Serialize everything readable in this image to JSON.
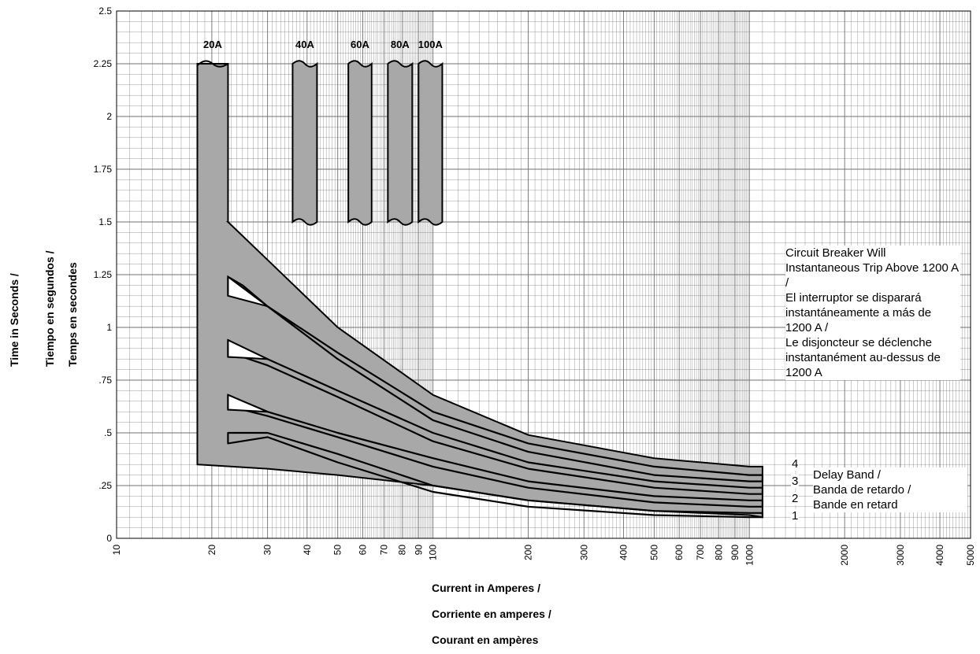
{
  "chart_data": {
    "type": "area",
    "x_scale": "log",
    "xlim": [
      10,
      5000
    ],
    "ylim": [
      0,
      2.5
    ],
    "grid": true,
    "y_ticks": [
      {
        "value": 0,
        "label": "0"
      },
      {
        "value": 0.25,
        "label": ".25"
      },
      {
        "value": 0.5,
        "label": ".5"
      },
      {
        "value": 0.75,
        "label": ".75"
      },
      {
        "value": 1,
        "label": "1"
      },
      {
        "value": 1.25,
        "label": "1.25"
      },
      {
        "value": 1.5,
        "label": "1.5"
      },
      {
        "value": 1.75,
        "label": "1.75"
      },
      {
        "value": 2,
        "label": "2"
      },
      {
        "value": 2.25,
        "label": "2.25"
      },
      {
        "value": 2.5,
        "label": "2.5"
      }
    ],
    "x_ticks": [
      10,
      20,
      30,
      40,
      50,
      60,
      70,
      80,
      90,
      100,
      200,
      300,
      400,
      500,
      600,
      700,
      800,
      900,
      1000,
      2000,
      3000,
      4000,
      5000
    ],
    "ylabel": [
      "Time in Seconds /",
      "Tiempo en segundos /",
      "Temps en secondes"
    ],
    "xlabel": [
      "Current in Amperes /",
      "Corriente en amperes /",
      "Courant en ampères"
    ],
    "instantaneous_bands": [
      {
        "label": "20A",
        "x_range": [
          18,
          22.5
        ],
        "y_range": [
          1.5,
          2.25
        ]
      },
      {
        "label": "40A",
        "x_range": [
          36,
          43
        ],
        "y_range": [
          1.5,
          2.25
        ]
      },
      {
        "label": "60A",
        "x_range": [
          54,
          64
        ],
        "y_range": [
          1.5,
          2.25
        ]
      },
      {
        "label": "80A",
        "x_range": [
          72,
          86
        ],
        "y_range": [
          1.5,
          2.25
        ]
      },
      {
        "label": "100A",
        "x_range": [
          90,
          107
        ],
        "y_range": [
          1.5,
          2.25
        ]
      }
    ],
    "delay_envelope": {
      "x_start": 18,
      "x_step": 22.5,
      "top": [
        [
          22.5,
          1.5
        ],
        [
          30,
          1.32
        ],
        [
          50,
          1.0
        ],
        [
          100,
          0.68
        ],
        [
          200,
          0.49
        ],
        [
          500,
          0.38
        ],
        [
          1000,
          0.34
        ],
        [
          1100,
          0.34
        ]
      ],
      "bottom": [
        [
          1100,
          0.1
        ],
        [
          1000,
          0.11
        ],
        [
          500,
          0.13
        ],
        [
          200,
          0.18
        ],
        [
          100,
          0.25
        ],
        [
          50,
          0.3
        ],
        [
          30,
          0.33
        ],
        [
          18,
          0.35
        ]
      ]
    },
    "delay_bands": [
      {
        "name": "4",
        "upper": [
          [
            22.5,
            1.24
          ],
          [
            25,
            1.2
          ],
          [
            30,
            1.1
          ],
          [
            50,
            0.88
          ],
          [
            100,
            0.6
          ],
          [
            200,
            0.45
          ],
          [
            500,
            0.34
          ],
          [
            1000,
            0.3
          ],
          [
            1100,
            0.3
          ]
        ],
        "lower": [
          [
            22.5,
            1.15
          ],
          [
            25,
            1.15
          ],
          [
            30,
            1.1
          ],
          [
            50,
            0.85
          ],
          [
            100,
            0.56
          ],
          [
            200,
            0.41
          ],
          [
            500,
            0.3
          ],
          [
            1000,
            0.27
          ],
          [
            1100,
            0.27
          ]
        ]
      },
      {
        "name": "3",
        "upper": [
          [
            22.5,
            0.94
          ],
          [
            25,
            0.9
          ],
          [
            30,
            0.85
          ],
          [
            50,
            0.7
          ],
          [
            100,
            0.5
          ],
          [
            200,
            0.36
          ],
          [
            500,
            0.27
          ],
          [
            1000,
            0.24
          ],
          [
            1100,
            0.24
          ]
        ],
        "lower": [
          [
            22.5,
            0.86
          ],
          [
            25,
            0.86
          ],
          [
            30,
            0.82
          ],
          [
            50,
            0.67
          ],
          [
            100,
            0.46
          ],
          [
            200,
            0.33
          ],
          [
            500,
            0.24
          ],
          [
            1000,
            0.21
          ],
          [
            1100,
            0.21
          ]
        ]
      },
      {
        "name": "2",
        "upper": [
          [
            22.5,
            0.68
          ],
          [
            25,
            0.65
          ],
          [
            30,
            0.6
          ],
          [
            50,
            0.5
          ],
          [
            100,
            0.38
          ],
          [
            200,
            0.27
          ],
          [
            500,
            0.2
          ],
          [
            1000,
            0.18
          ],
          [
            1100,
            0.18
          ]
        ],
        "lower": [
          [
            22.5,
            0.61
          ],
          [
            25,
            0.61
          ],
          [
            30,
            0.58
          ],
          [
            50,
            0.48
          ],
          [
            100,
            0.34
          ],
          [
            200,
            0.24
          ],
          [
            500,
            0.17
          ],
          [
            1000,
            0.15
          ],
          [
            1100,
            0.15
          ]
        ]
      },
      {
        "name": "1",
        "upper": [
          [
            22.5,
            0.5
          ],
          [
            30,
            0.5
          ],
          [
            50,
            0.4
          ],
          [
            100,
            0.25
          ],
          [
            200,
            0.18
          ],
          [
            500,
            0.13
          ],
          [
            1000,
            0.12
          ],
          [
            1100,
            0.12
          ]
        ],
        "lower": [
          [
            22.5,
            0.45
          ],
          [
            30,
            0.48
          ],
          [
            50,
            0.36
          ],
          [
            100,
            0.22
          ],
          [
            200,
            0.15
          ],
          [
            500,
            0.11
          ],
          [
            1000,
            0.1
          ],
          [
            1100,
            0.1
          ]
        ]
      }
    ],
    "annotations": {
      "instantaneous_note": [
        "Circuit Breaker Will Instantaneous Trip Above 1200 A /",
        "El interruptor se disparará instantáneamente a más de 1200 A /",
        "Le disjoncteur se déclenche instantanément au-dessus de 1200 A"
      ],
      "delay_band_note": [
        "Delay Band /",
        "Banda de retardo /",
        "Bande en retard"
      ]
    },
    "fill_color": "#a8a8a8",
    "grid_color": "#707070"
  }
}
